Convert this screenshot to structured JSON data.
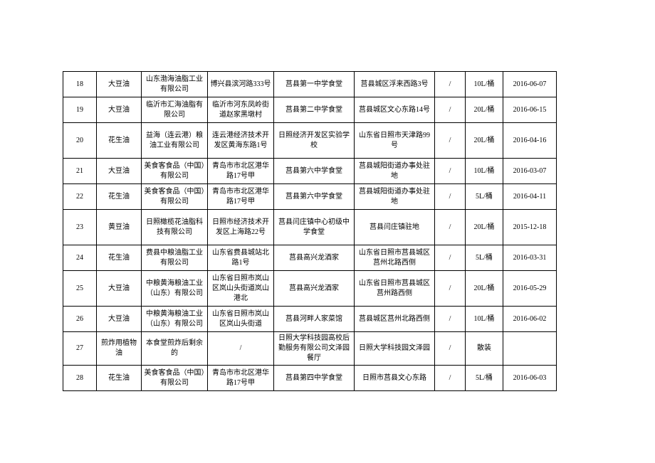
{
  "table": {
    "columns": [
      "col-num",
      "col-product",
      "col-company",
      "col-addr1",
      "col-unit",
      "col-addr2",
      "col-slash",
      "col-spec",
      "col-date"
    ],
    "rows": [
      {
        "h": "row-h1",
        "cells": [
          "18",
          "大豆油",
          "山东渤海油脂工业有限公司",
          "博兴县滨河路333号",
          "莒县第一中学食堂",
          "莒县城区浮来西路3号",
          "/",
          "10L/桶",
          "2016-06-07"
        ]
      },
      {
        "h": "row-h1",
        "cells": [
          "19",
          "大豆油",
          "临沂市汇海油脂有限公司",
          "临沂市河东凤岭街道赵家黑墩村",
          "莒县第二中学食堂",
          "莒县城区文心东路14号",
          "/",
          "20L/桶",
          "2016-06-15"
        ]
      },
      {
        "h": "row-h3",
        "cells": [
          "20",
          "花生油",
          "益海（连云港）粮油工业有限公司",
          "连云港经济技术开发区黄海东路1号",
          "日照经济开发区实验学校",
          "山东省日照市天津路99号",
          "/",
          "20L/桶",
          "2016-04-16"
        ]
      },
      {
        "h": "row-h1",
        "cells": [
          "21",
          "大豆油",
          "美食客食品（中国）有限公司",
          "青岛市市北区港华路17号甲",
          "莒县第六中学食堂",
          "莒县城阳街道办事处驻地",
          "/",
          "10L/桶",
          "2016-03-07"
        ]
      },
      {
        "h": "row-h1",
        "cells": [
          "22",
          "花生油",
          "美食客食品（中国）有限公司",
          "青岛市市北区港华路17号甲",
          "莒县第六中学食堂",
          "莒县城阳街道办事处驻地",
          "/",
          "5L/桶",
          "2016-04-11"
        ]
      },
      {
        "h": "row-h3",
        "cells": [
          "23",
          "黄豆油",
          "日照橄榄花油脂科技有限公司",
          "日照市经济技术开发区上海路22号",
          "莒县闫庄镇中心初级中学食堂",
          "莒县闫庄镇驻地",
          "/",
          "20L/桶",
          "2015-12-18"
        ]
      },
      {
        "h": "row-h1",
        "cells": [
          "24",
          "花生油",
          "费县中粮油脂工业有限公司",
          "山东省费县城站北路1号",
          "莒县高兴龙酒家",
          "山东省日照市莒县城区莒州北路西侧",
          "/",
          "5L/桶",
          "2016-03-31"
        ]
      },
      {
        "h": "row-h3",
        "cells": [
          "25",
          "大豆油",
          "中粮黄海粮油工业（山东）有限公司",
          "山东省日照市岚山区岚山头街道岚山港北",
          "莒县高兴龙酒家",
          "山东省日照市莒县城区莒州路西侧",
          "/",
          "20L/桶",
          "2016-05-29"
        ]
      },
      {
        "h": "row-h1",
        "cells": [
          "26",
          "大豆油",
          "中粮黄海粮油工业（山东）有限公司",
          "山东省日照市岚山区岚山头街道",
          "莒县河畔人家菜馆",
          "莒县城区莒州北路西侧",
          "/",
          "10L/桶",
          "2016-06-02"
        ]
      },
      {
        "h": "row-h1",
        "cells": [
          "27",
          "煎炸用植物油",
          "本食堂煎炸后剩余的",
          "/",
          "日照大学科技园高校后勤服务有限公司文泽园餐厅",
          "日照大学科技园文泽园",
          "/",
          "散装",
          ""
        ]
      },
      {
        "h": "row-h1",
        "cells": [
          "28",
          "花生油",
          "美食客食品（中国）有限公司",
          "青岛市市北区港华路17号甲",
          "莒县第四中学食堂",
          "日照市莒县文心东路",
          "/",
          "5L/桶",
          "2016-06-03"
        ]
      }
    ]
  }
}
